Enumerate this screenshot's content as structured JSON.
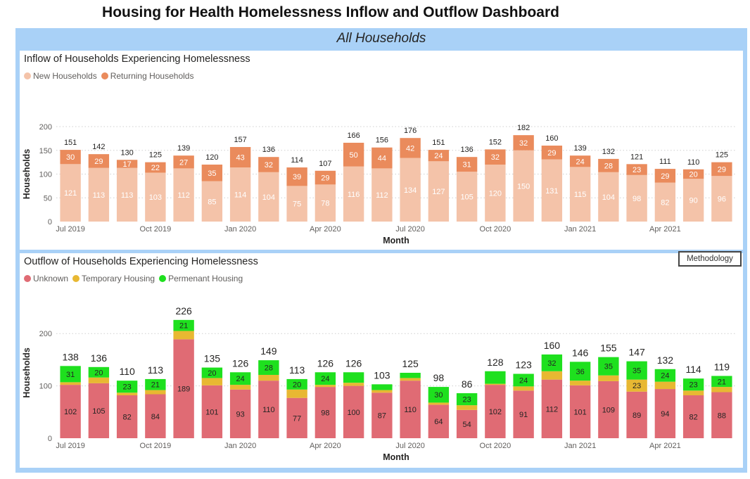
{
  "page": {
    "title": "Housing for Health Homelessness Inflow and Outflow Dashboard"
  },
  "section": {
    "title": "All Households"
  },
  "methodology_label": "Methodology",
  "colors": {
    "new": "#f4c3a9",
    "returning": "#ea8b5c",
    "unknown": "#e06b74",
    "temporary": "#e8b832",
    "permanent": "#1ee01e",
    "grid": "#cfcfcf",
    "frame": "#a9d1f7"
  },
  "chart_data": [
    {
      "type": "bar",
      "stacked": true,
      "title": "Inflow of Households Experiencing Homelessness",
      "xlabel": "Month",
      "ylabel": "Households",
      "ylim": [
        0,
        200
      ],
      "yticks": [
        0,
        50,
        100,
        150,
        200
      ],
      "grid": true,
      "legend": "top-left",
      "categories": [
        "Jul 2019",
        "Aug 2019",
        "Sep 2019",
        "Oct 2019",
        "Nov 2019",
        "Dec 2019",
        "Jan 2020",
        "Feb 2020",
        "Mar 2020",
        "Apr 2020",
        "May 2020",
        "Jun 2020",
        "Jul 2020",
        "Aug 2020",
        "Sep 2020",
        "Oct 2020",
        "Nov 2020",
        "Dec 2020",
        "Jan 2021",
        "Feb 2021",
        "Mar 2021",
        "Apr 2021",
        "May 2021",
        "Jun 2021"
      ],
      "tick_labels": [
        {
          "category": "Jul 2019",
          "label": "Jul 2019"
        },
        {
          "category": "Oct 2019",
          "label": "Oct 2019"
        },
        {
          "category": "Jan 2020",
          "label": "Jan 2020"
        },
        {
          "category": "Apr 2020",
          "label": "Apr 2020"
        },
        {
          "category": "Jul 2020",
          "label": "Jul 2020"
        },
        {
          "category": "Oct 2020",
          "label": "Oct 2020"
        },
        {
          "category": "Jan 2021",
          "label": "Jan 2021"
        },
        {
          "category": "Apr 2021",
          "label": "Apr 2021"
        }
      ],
      "series": [
        {
          "name": "New Households",
          "color": "#f4c3a9",
          "label_color": "#ffffff",
          "values": [
            121,
            113,
            113,
            103,
            112,
            85,
            114,
            104,
            75,
            78,
            116,
            112,
            134,
            127,
            105,
            120,
            150,
            131,
            115,
            104,
            98,
            82,
            90,
            96
          ]
        },
        {
          "name": "Returning Households",
          "color": "#ea8b5c",
          "label_color": "#ffffff",
          "values": [
            30,
            29,
            17,
            22,
            27,
            35,
            43,
            32,
            39,
            29,
            50,
            44,
            42,
            24,
            31,
            32,
            32,
            29,
            24,
            28,
            23,
            29,
            20,
            29
          ]
        }
      ],
      "totals": [
        151,
        142,
        130,
        125,
        139,
        120,
        157,
        136,
        114,
        107,
        166,
        156,
        176,
        151,
        136,
        152,
        182,
        160,
        139,
        132,
        121,
        111,
        110,
        125
      ]
    },
    {
      "type": "bar",
      "stacked": true,
      "title": "Outflow of Households Experiencing Homelessness",
      "xlabel": "Month",
      "ylabel": "Households",
      "ylim": [
        0,
        250
      ],
      "yticks": [
        0,
        100,
        200
      ],
      "grid": true,
      "legend": "top-left",
      "categories": [
        "Jul 2019",
        "Aug 2019",
        "Sep 2019",
        "Oct 2019",
        "Nov 2019",
        "Dec 2019",
        "Jan 2020",
        "Feb 2020",
        "Mar 2020",
        "Apr 2020",
        "May 2020",
        "Jun 2020",
        "Jul 2020",
        "Aug 2020",
        "Sep 2020",
        "Oct 2020",
        "Nov 2020",
        "Dec 2020",
        "Jan 2021",
        "Feb 2021",
        "Mar 2021",
        "Apr 2021",
        "May 2021",
        "Jun 2021"
      ],
      "tick_labels": [
        {
          "category": "Jul 2019",
          "label": "Jul 2019"
        },
        {
          "category": "Oct 2019",
          "label": "Oct 2019"
        },
        {
          "category": "Jan 2020",
          "label": "Jan 2020"
        },
        {
          "category": "Apr 2020",
          "label": "Apr 2020"
        },
        {
          "category": "Jul 2020",
          "label": "Jul 2020"
        },
        {
          "category": "Oct 2020",
          "label": "Oct 2020"
        },
        {
          "category": "Jan 2021",
          "label": "Jan 2021"
        },
        {
          "category": "Apr 2021",
          "label": "Apr 2021"
        }
      ],
      "series": [
        {
          "name": "Unknown",
          "color": "#e06b74",
          "label_color": "#252423",
          "values": [
            102,
            105,
            82,
            84,
            189,
            101,
            93,
            110,
            77,
            98,
            100,
            87,
            110,
            64,
            54,
            102,
            91,
            112,
            101,
            109,
            89,
            94,
            82,
            88
          ]
        },
        {
          "name": "Temporary Housing",
          "color": "#e8b832",
          "label_color": "#252423",
          "values": [
            5,
            11,
            5,
            8,
            16,
            14,
            9,
            11,
            16,
            4,
            6,
            5,
            5,
            4,
            9,
            2,
            8,
            16,
            9,
            11,
            23,
            14,
            9,
            10
          ],
          "labels": [
            null,
            null,
            null,
            null,
            null,
            null,
            null,
            null,
            null,
            null,
            null,
            null,
            null,
            null,
            null,
            null,
            null,
            null,
            null,
            null,
            23,
            null,
            null,
            null
          ]
        },
        {
          "name": "Permenant Housing",
          "color": "#1ee01e",
          "label_color": "#252423",
          "values": [
            31,
            20,
            23,
            21,
            21,
            20,
            24,
            28,
            20,
            24,
            20,
            11,
            10,
            30,
            23,
            24,
            24,
            32,
            36,
            35,
            35,
            24,
            23,
            21
          ],
          "labels": [
            31,
            20,
            23,
            21,
            21,
            20,
            24,
            28,
            20,
            24,
            null,
            null,
            null,
            30,
            23,
            null,
            24,
            32,
            36,
            35,
            35,
            24,
            23,
            21
          ]
        }
      ],
      "totals": [
        138,
        136,
        110,
        113,
        226,
        135,
        126,
        149,
        113,
        126,
        126,
        103,
        125,
        98,
        86,
        128,
        123,
        160,
        146,
        155,
        147,
        132,
        114,
        119
      ]
    }
  ]
}
